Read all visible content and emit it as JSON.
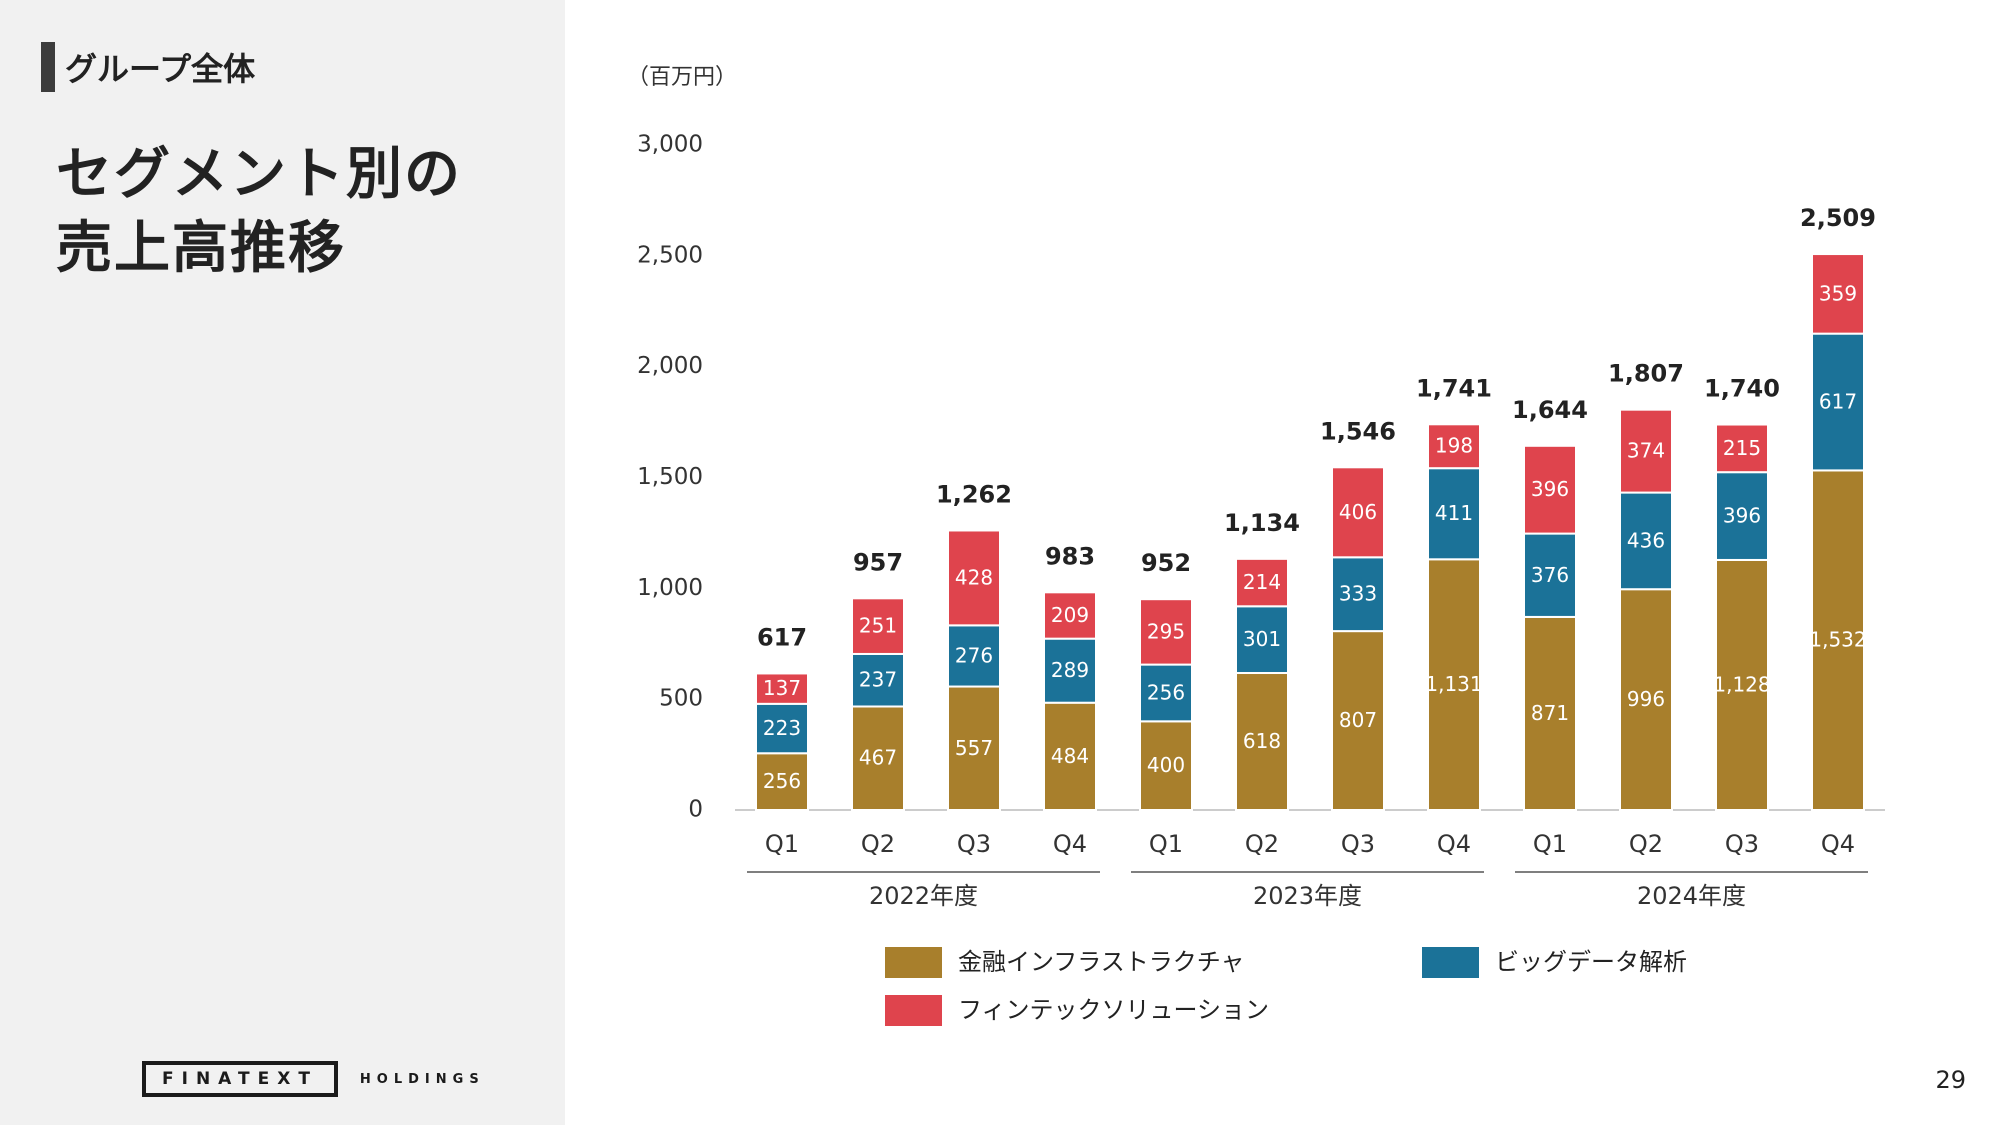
{
  "header": {
    "section_label": "グループ全体",
    "title_line1": "セグメント別の",
    "title_line2": "売上高推移"
  },
  "footer": {
    "logo_main": "FINATEXT",
    "logo_sub": "HOLDINGS",
    "page_number": "29"
  },
  "colors": {
    "finance_infra": "#a87f2c",
    "big_data": "#1b7298",
    "fintech": "#df444d"
  },
  "chart_data": {
    "type": "bar",
    "stacked": true,
    "unit_label": "（百万円）",
    "categories": [
      "Q1",
      "Q2",
      "Q3",
      "Q4",
      "Q1",
      "Q2",
      "Q3",
      "Q4",
      "Q1",
      "Q2",
      "Q3",
      "Q4"
    ],
    "groups": [
      {
        "label": "2022年度",
        "from": 0,
        "to": 3
      },
      {
        "label": "2023年度",
        "from": 4,
        "to": 7
      },
      {
        "label": "2024年度",
        "from": 8,
        "to": 11
      }
    ],
    "series": [
      {
        "name": "金融インフラストラクチャ",
        "color": "#a87f2c",
        "values": [
          256,
          467,
          557,
          484,
          400,
          618,
          807,
          1131,
          871,
          996,
          1128,
          1532
        ]
      },
      {
        "name": "ビッグデータ解析",
        "color": "#1b7298",
        "values": [
          223,
          237,
          276,
          289,
          256,
          301,
          333,
          411,
          376,
          436,
          396,
          617
        ]
      },
      {
        "name": "フィンテックソリューション",
        "color": "#df444d",
        "values": [
          137,
          251,
          428,
          209,
          295,
          214,
          406,
          198,
          396,
          374,
          215,
          359
        ]
      }
    ],
    "totals": [
      617,
      957,
      1262,
      983,
      952,
      1134,
      1546,
      1741,
      1644,
      1807,
      1740,
      2509
    ],
    "ylim": [
      0,
      3000
    ],
    "yticks": [
      0,
      500,
      1000,
      1500,
      2000,
      2500,
      3000
    ],
    "grid": false,
    "legend_position": "bottom"
  }
}
